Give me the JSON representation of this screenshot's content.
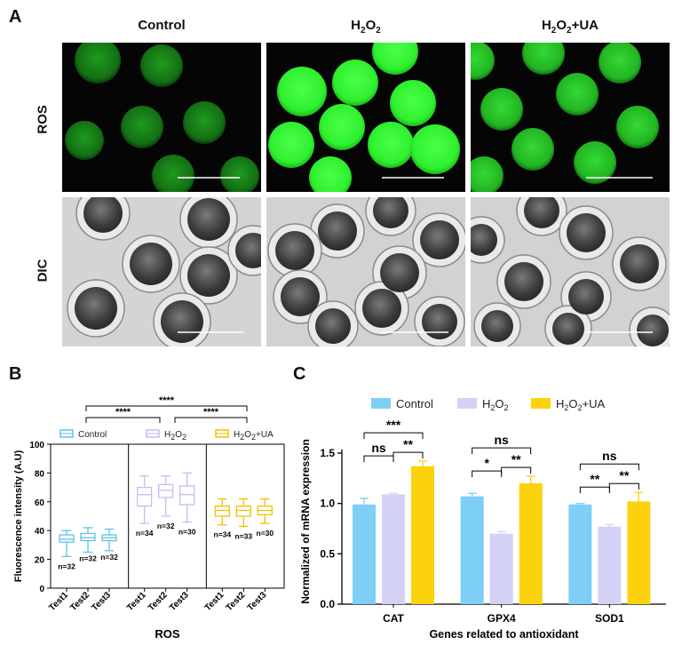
{
  "panelA": {
    "letter": "A",
    "columns": [
      "Control",
      "H2O2",
      "H2O2+UA"
    ],
    "rows": [
      "ROS",
      "DIC"
    ]
  },
  "panelB": {
    "letter": "B",
    "ylabel": "Fluorescence intensity (A.U)",
    "xlabel": "ROS",
    "legend": [
      "Control",
      "H2O2",
      "H2O2+UA"
    ],
    "significance": [
      "****",
      "****",
      "****"
    ],
    "yticks": [
      "0",
      "20",
      "40",
      "60",
      "80",
      "100"
    ],
    "n_labels": [
      "n=32",
      "n=32",
      "n=32",
      "n=34",
      "n=32",
      "n=30",
      "n=34",
      "n=33",
      "n=30"
    ]
  },
  "panelC": {
    "letter": "C",
    "significance": {
      "CAT": [
        "***",
        "ns",
        "**"
      ],
      "GPX4": [
        "ns",
        "*",
        "**"
      ],
      "SOD1": [
        "ns",
        "**",
        "**"
      ]
    }
  },
  "colors": {
    "control_blue": "#7dcff5",
    "h2o2_lavender": "#d3d2f5",
    "ua_yellow": "#fcd20d",
    "box_blue": "#5ec2ea",
    "box_lavender": "#c2bff0",
    "box_yellow": "#f2c200",
    "fluor_green": "#2ef02e"
  },
  "chart_data": [
    {
      "type": "box",
      "title": "",
      "xlabel": "ROS",
      "ylabel": "Fluorescence intensity (A.U)",
      "ylim": [
        0,
        100
      ],
      "grid": false,
      "legend_position": "top",
      "groups": [
        "Control",
        "H2O2",
        "H2O2+UA"
      ],
      "categories": [
        "Test1",
        "Test2",
        "Test3"
      ],
      "series": [
        {
          "name": "Control",
          "boxes": [
            {
              "min": 22,
              "q1": 32,
              "median": 34,
              "q3": 37,
              "max": 40,
              "n": "n=32"
            },
            {
              "min": 25,
              "q1": 33,
              "median": 35,
              "q3": 38,
              "max": 42,
              "n": "n=32"
            },
            {
              "min": 26,
              "q1": 33,
              "median": 35,
              "q3": 37,
              "max": 41,
              "n": "n=32"
            }
          ]
        },
        {
          "name": "H2O2",
          "boxes": [
            {
              "min": 45,
              "q1": 57,
              "median": 65,
              "q3": 70,
              "max": 78,
              "n": "n=34"
            },
            {
              "min": 50,
              "q1": 63,
              "median": 68,
              "q3": 72,
              "max": 78,
              "n": "n=32"
            },
            {
              "min": 46,
              "q1": 58,
              "median": 65,
              "q3": 71,
              "max": 80,
              "n": "n=30"
            }
          ]
        },
        {
          "name": "H2O2+UA",
          "boxes": [
            {
              "min": 44,
              "q1": 50,
              "median": 54,
              "q3": 57,
              "max": 62,
              "n": "n=34"
            },
            {
              "min": 43,
              "q1": 50,
              "median": 54,
              "q3": 57,
              "max": 62,
              "n": "n=33"
            },
            {
              "min": 45,
              "q1": 51,
              "median": 54,
              "q3": 57,
              "max": 62,
              "n": "n=30"
            }
          ]
        }
      ],
      "significance": [
        {
          "from": "Control",
          "to": "H2O2",
          "label": "****"
        },
        {
          "from": "H2O2",
          "to": "H2O2+UA",
          "label": "****"
        },
        {
          "from": "Control",
          "to": "H2O2+UA",
          "label": "****"
        }
      ]
    },
    {
      "type": "bar",
      "title": "",
      "xlabel": "Genes related to antioxidant",
      "ylabel": "Normalized  of mRNA expression",
      "ylim": [
        0,
        1.5
      ],
      "yticks": [
        0.0,
        0.5,
        1.0,
        1.5
      ],
      "grid": false,
      "legend_position": "top",
      "categories": [
        "CAT",
        "GPX4",
        "SOD1"
      ],
      "series": [
        {
          "name": "Control",
          "values": [
            0.99,
            1.07,
            0.99
          ],
          "errors": [
            0.06,
            0.03,
            0.01
          ]
        },
        {
          "name": "H2O2",
          "values": [
            1.09,
            0.7,
            0.77
          ],
          "errors": [
            0.01,
            0.02,
            0.02
          ]
        },
        {
          "name": "H2O2+UA",
          "values": [
            1.37,
            1.2,
            1.02
          ],
          "errors": [
            0.05,
            0.07,
            0.09
          ]
        }
      ]
    }
  ]
}
